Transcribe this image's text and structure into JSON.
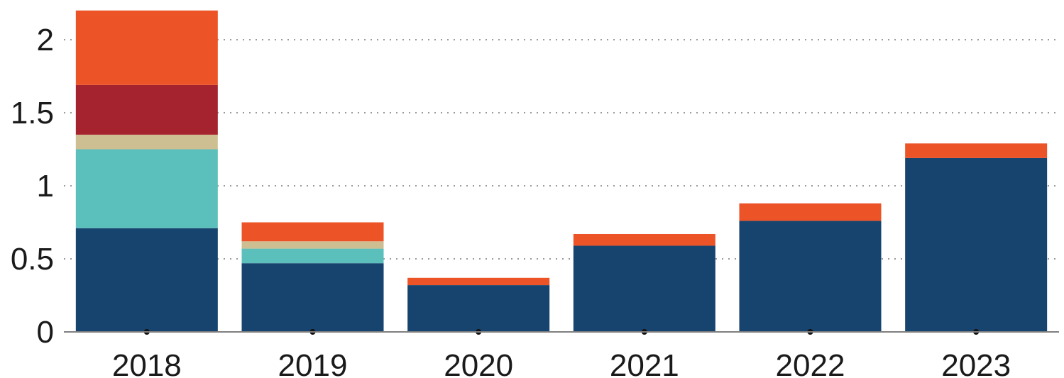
{
  "chart_data": {
    "type": "bar",
    "stacked": true,
    "title": "",
    "xlabel": "",
    "ylabel": "",
    "categories": [
      "2018",
      "2019",
      "2020",
      "2021",
      "2022",
      "2023"
    ],
    "ylim": [
      0,
      2.2
    ],
    "yticks": [
      0,
      0.5,
      1,
      1.5,
      2
    ],
    "ytick_labels": [
      "0",
      "0.5",
      "1",
      "1.5",
      "2"
    ],
    "grid": "horizontal dotted",
    "legend": "none",
    "series": [
      {
        "color": "#17436f",
        "values": [
          0.71,
          0.47,
          0.32,
          0.59,
          0.76,
          1.19
        ]
      },
      {
        "color": "#5bbfbb",
        "values": [
          0.54,
          0.1,
          0.0,
          0.0,
          0.0,
          0.0
        ]
      },
      {
        "color": "#cdbf92",
        "values": [
          0.1,
          0.05,
          0.0,
          0.0,
          0.0,
          0.0
        ]
      },
      {
        "color": "#a5222f",
        "values": [
          0.34,
          0.0,
          0.0,
          0.0,
          0.0,
          0.0
        ]
      },
      {
        "color": "#ec5428",
        "values": [
          0.51,
          0.13,
          0.05,
          0.08,
          0.12,
          0.1
        ]
      }
    ]
  }
}
